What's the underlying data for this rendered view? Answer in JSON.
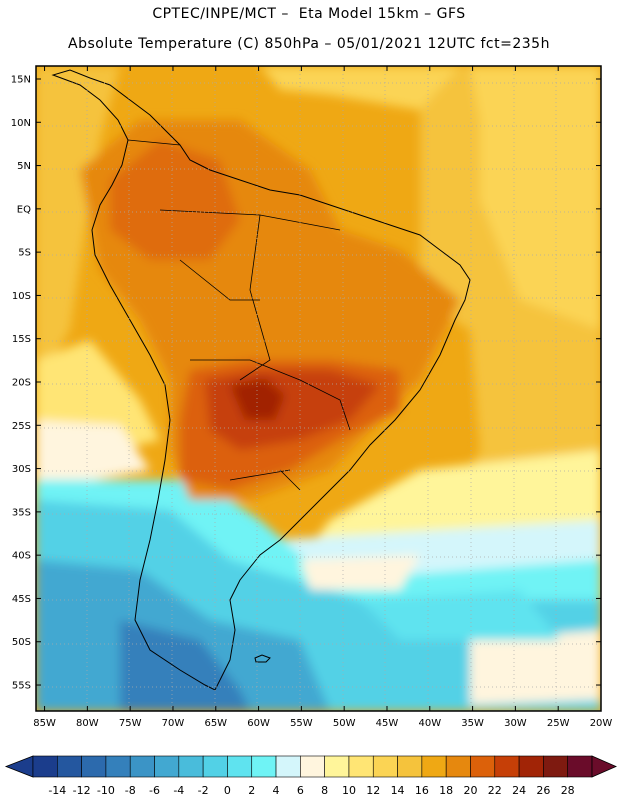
{
  "header": {
    "title_line1": "CPTEC/INPE/MCT –  Eta Model 15km – GFS",
    "title_line2": "Absolute Temperature (C) 850hPa – 05/01/2021 12UTC fct=235h"
  },
  "map": {
    "lat_labels": [
      "15N",
      "10N",
      "5N",
      "EQ",
      "5S",
      "10S",
      "15S",
      "20S",
      "25S",
      "30S",
      "35S",
      "40S",
      "45S",
      "50S",
      "55S"
    ],
    "lon_labels": [
      "85W",
      "80W",
      "75W",
      "70W",
      "65W",
      "60W",
      "55W",
      "50W",
      "45W",
      "40W",
      "35W",
      "30W",
      "25W",
      "20W"
    ],
    "lat_range": [
      16.5,
      -58
    ],
    "lon_range": [
      -86,
      -20
    ]
  },
  "legend": {
    "tick_labels": [
      "-14",
      "-12",
      "-10",
      "-8",
      "-6",
      "-4",
      "-2",
      "0",
      "2",
      "4",
      "6",
      "8",
      "10",
      "12",
      "14",
      "16",
      "18",
      "20",
      "22",
      "24",
      "26",
      "28"
    ],
    "colors": [
      "#1b3d8c",
      "#24579f",
      "#2c6aad",
      "#3480bb",
      "#3b94c6",
      "#42a8d1",
      "#49bcdb",
      "#52d1e6",
      "#5fe3ef",
      "#6ff3f5",
      "#d4f6fb",
      "#fff5de",
      "#fff59a",
      "#ffe574",
      "#fbd454",
      "#f5c33c",
      "#efa814",
      "#e6880e",
      "#dc610a",
      "#c63f07",
      "#a12406",
      "#7e1a10",
      "#6a0c2a"
    ]
  }
}
